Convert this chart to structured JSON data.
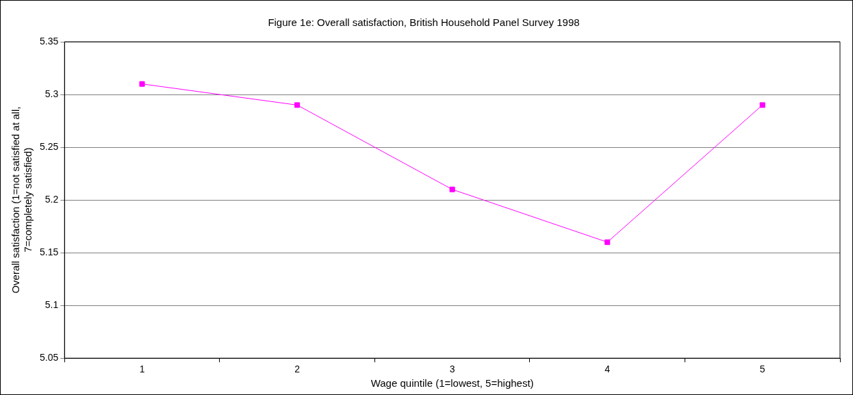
{
  "chart_data": {
    "type": "line",
    "title": "Figure 1e: Overall satisfaction, British Household Panel Survey 1998",
    "xlabel": "Wage quintile (1=lowest, 5=highest)",
    "ylabel": "Overall satisfaction (1=not satisfied at all, 7=completely satisfied)",
    "categories": [
      "1",
      "2",
      "3",
      "4",
      "5"
    ],
    "series": [
      {
        "color": "#ff00ff",
        "values": [
          5.31,
          5.29,
          5.21,
          5.16,
          5.29
        ]
      }
    ],
    "ylim": [
      5.05,
      5.35
    ],
    "yticks": [
      5.05,
      5.1,
      5.15,
      5.2,
      5.25,
      5.3,
      5.35
    ],
    "grid": "y",
    "legend": false,
    "marker": "square",
    "line_style": "solid"
  }
}
